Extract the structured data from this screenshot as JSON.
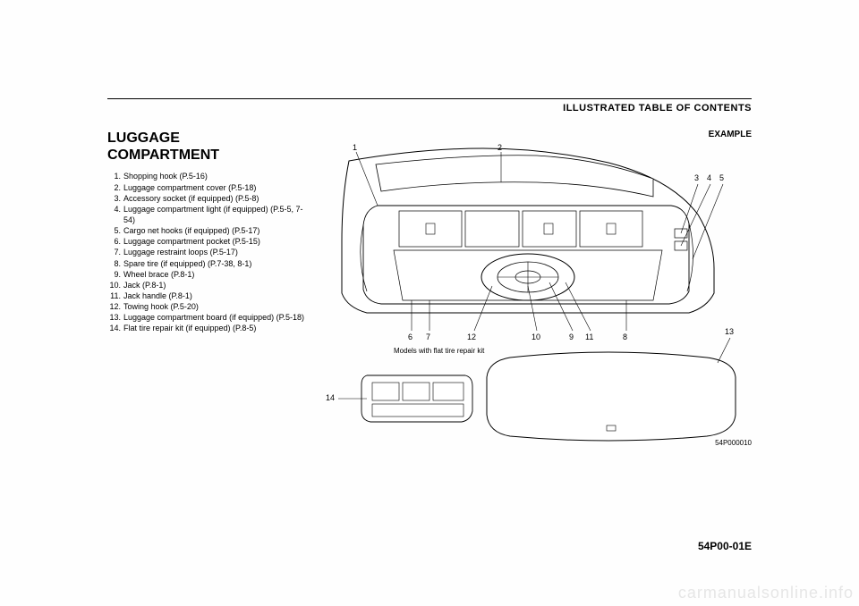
{
  "header": {
    "section": "ILLUSTRATED TABLE OF CONTENTS"
  },
  "title_l1": "LUGGAGE",
  "title_l2": "COMPARTMENT",
  "items": [
    {
      "n": "1.",
      "t": "Shopping hook (P.5-16)"
    },
    {
      "n": "2.",
      "t": "Luggage compartment cover (P.5-18)"
    },
    {
      "n": "3.",
      "t": "Accessory socket (if equipped) (P.5-8)"
    },
    {
      "n": "4.",
      "t": "Luggage compartment light (if equipped) (P.5-5, 7-54)"
    },
    {
      "n": "5.",
      "t": "Cargo net hooks (if equipped) (P.5-17)"
    },
    {
      "n": "6.",
      "t": "Luggage compartment pocket (P.5-15)"
    },
    {
      "n": "7.",
      "t": "Luggage restraint loops (P.5-17)"
    },
    {
      "n": "8.",
      "t": "Spare tire (if equipped) (P.7-38, 8-1)"
    },
    {
      "n": "9.",
      "t": "Wheel brace (P.8-1)"
    },
    {
      "n": "10.",
      "t": "Jack (P.8-1)"
    },
    {
      "n": "11.",
      "t": "Jack handle (P.8-1)"
    },
    {
      "n": "12.",
      "t": "Towing hook (P.5-20)"
    },
    {
      "n": "13.",
      "t": "Luggage compartment board (if equipped) (P.5-18)"
    },
    {
      "n": "14.",
      "t": "Flat tire repair kit (if equipped) (P.8-5)"
    }
  ],
  "example_label": "EXAMPLE",
  "callouts_top": {
    "1": "1",
    "2": "2",
    "3": "3",
    "4": "4",
    "5": "5"
  },
  "callouts_bottom": {
    "6": "6",
    "7": "7",
    "12": "12",
    "10": "10",
    "9": "9",
    "11": "11",
    "8": "8"
  },
  "callout_13": "13",
  "callout_14": "14",
  "subcaption": "Models with flat tire repair kit",
  "figure_id": "54P000010",
  "footer_code": "54P00-01E",
  "watermark": "carmanualsonline.info",
  "diagram_style": {
    "stroke": "#000000",
    "stroke_width": 1,
    "fill": "#ffffff",
    "bg": "#ffffff"
  }
}
